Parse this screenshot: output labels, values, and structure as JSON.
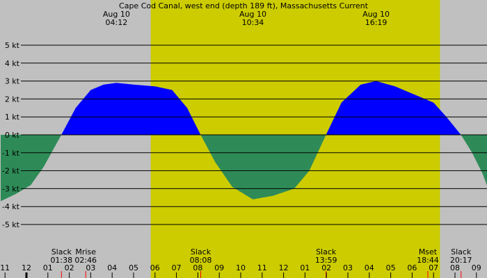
{
  "chart_data": {
    "type": "area",
    "title": "Cape Cod Canal, west end (depth 189 ft), Massachusetts Current",
    "unit": "kt",
    "y_ticks": [
      {
        "value": 5,
        "label": "5 kt"
      },
      {
        "value": 4,
        "label": "4 kt"
      },
      {
        "value": 3,
        "label": "3 kt"
      },
      {
        "value": 2,
        "label": "2 kt"
      },
      {
        "value": 1,
        "label": "1 kt"
      },
      {
        "value": 0,
        "label": "0 kt"
      },
      {
        "value": -1,
        "label": "-1 kt"
      },
      {
        "value": -2,
        "label": "-2 kt"
      },
      {
        "value": -3,
        "label": "-3 kt"
      },
      {
        "value": -4,
        "label": "-4 kt"
      },
      {
        "value": -5,
        "label": "-5 kt"
      }
    ],
    "ylim": [
      -5.5,
      5.5
    ],
    "x_start_hour": -13.1,
    "x_end_hour": 9.6,
    "daylight_hours": [
      5.8,
      19.3
    ],
    "top_events": [
      {
        "date": "Aug 10",
        "time": "04:12",
        "hour": 4.2
      },
      {
        "date": "Aug 10",
        "time": "10:34",
        "hour": 10.567
      },
      {
        "date": "Aug 10",
        "time": "16:19",
        "hour": 16.317
      }
    ],
    "bottom_events": [
      {
        "label": "Slack",
        "time": "01:38",
        "hour": 1.633
      },
      {
        "label": "Mrise",
        "time": "02:46",
        "hour": 2.767
      },
      {
        "label": "Slack",
        "time": "08:08",
        "hour": 8.133
      },
      {
        "label": "Slack",
        "time": "13:59",
        "hour": 13.983
      },
      {
        "label": "Mset",
        "time": "18:44",
        "hour": 18.733
      },
      {
        "label": "Slack",
        "time": "20:17",
        "hour": 20.283
      }
    ],
    "x_tick_labels": [
      {
        "label": "11",
        "hour": -1
      },
      {
        "label": "12",
        "hour": 0
      },
      {
        "label": "01",
        "hour": 1
      },
      {
        "label": "02",
        "hour": 2
      },
      {
        "label": "03",
        "hour": 3
      },
      {
        "label": "04",
        "hour": 4
      },
      {
        "label": "05",
        "hour": 5
      },
      {
        "label": "06",
        "hour": 6
      },
      {
        "label": "07",
        "hour": 7
      },
      {
        "label": "08",
        "hour": 8
      },
      {
        "label": "09",
        "hour": 9
      },
      {
        "label": "10",
        "hour": 10
      },
      {
        "label": "11",
        "hour": 11
      },
      {
        "label": "12",
        "hour": 12
      },
      {
        "label": "01",
        "hour": 13
      },
      {
        "label": "02",
        "hour": 14
      },
      {
        "label": "03",
        "hour": 15
      },
      {
        "label": "04",
        "hour": 16
      },
      {
        "label": "05",
        "hour": 17
      },
      {
        "label": "06",
        "hour": 18
      },
      {
        "label": "07",
        "hour": 19
      },
      {
        "label": "08",
        "hour": 20
      },
      {
        "label": "09",
        "hour": 21
      }
    ],
    "series": [
      {
        "kind": "flood",
        "points": [
          [
            1.63,
            0
          ],
          [
            2.3,
            1.5
          ],
          [
            3.0,
            2.5
          ],
          [
            3.6,
            2.8
          ],
          [
            4.2,
            2.9
          ],
          [
            5.0,
            2.8
          ],
          [
            6.0,
            2.7
          ],
          [
            6.8,
            2.5
          ],
          [
            7.5,
            1.5
          ],
          [
            8.13,
            0
          ]
        ]
      },
      {
        "kind": "ebb",
        "points": [
          [
            -1.2,
            -3.7
          ],
          [
            -0.5,
            -3.3
          ],
          [
            0.2,
            -2.8
          ],
          [
            0.8,
            -1.8
          ],
          [
            1.63,
            0
          ]
        ]
      },
      {
        "kind": "ebb",
        "points": [
          [
            8.13,
            0
          ],
          [
            8.8,
            -1.5
          ],
          [
            9.6,
            -2.9
          ],
          [
            10.567,
            -3.6
          ],
          [
            11.5,
            -3.4
          ],
          [
            12.5,
            -3.0
          ],
          [
            13.2,
            -2.0
          ],
          [
            13.98,
            0
          ]
        ]
      },
      {
        "kind": "flood",
        "points": [
          [
            13.98,
            0
          ],
          [
            14.7,
            1.8
          ],
          [
            15.6,
            2.8
          ],
          [
            16.317,
            3.0
          ],
          [
            17.2,
            2.7
          ],
          [
            18.2,
            2.2
          ],
          [
            19.0,
            1.8
          ],
          [
            19.6,
            1.0
          ],
          [
            20.28,
            0
          ]
        ]
      },
      {
        "kind": "ebb",
        "points": [
          [
            20.28,
            0
          ],
          [
            20.8,
            -1.0
          ],
          [
            21.3,
            -2.2
          ],
          [
            21.55,
            -3.0
          ]
        ]
      }
    ],
    "colors": {
      "background": "#c0c0c0",
      "daylight": "#cccc00",
      "flood": "#0000ff",
      "ebb": "#2e8b57",
      "grid": "#000000",
      "moon_tick": "#ff0000"
    }
  }
}
